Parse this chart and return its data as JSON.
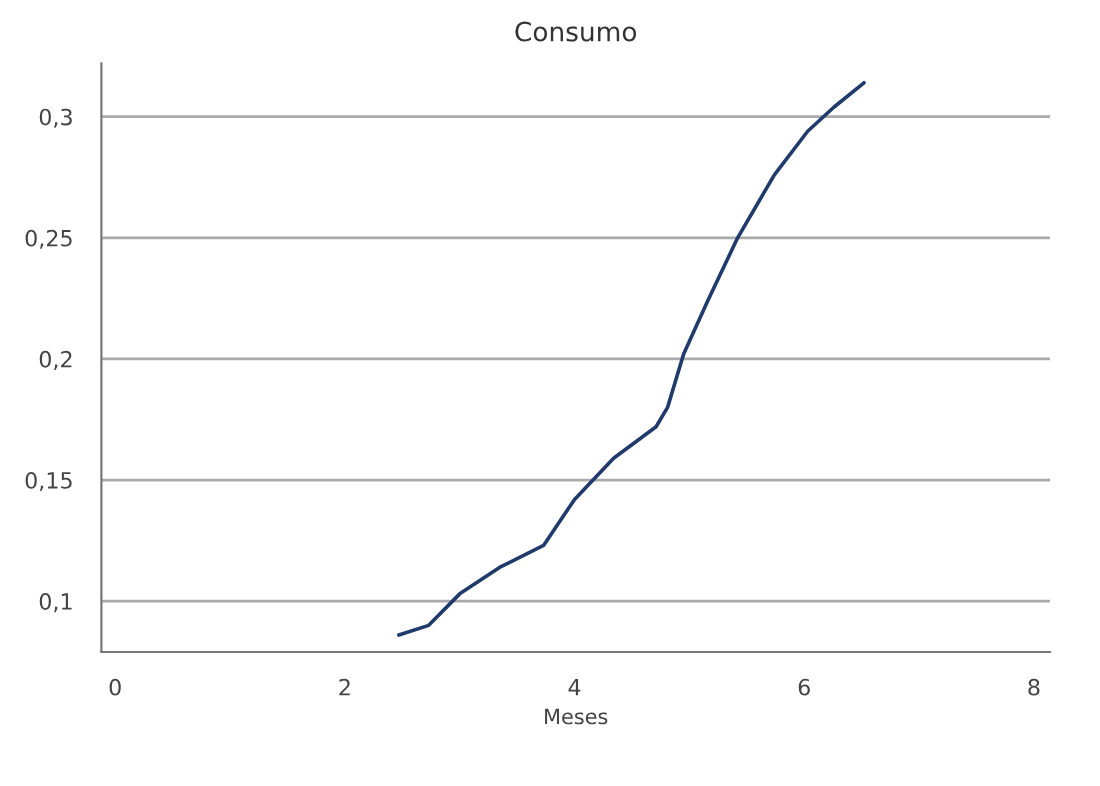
{
  "chart_data": {
    "type": "line",
    "title": "Consumo",
    "xlabel": "Meses",
    "series": [
      {
        "color": "#1f3a6b",
        "x": [
          2.47,
          2.73,
          3.0,
          3.35,
          3.73,
          4.0,
          4.34,
          4.71,
          4.81,
          4.95,
          5.16,
          5.42,
          5.74,
          6.03,
          6.26,
          6.52
        ],
        "values": [
          0.086,
          0.09,
          0.103,
          0.114,
          0.123,
          0.142,
          0.159,
          0.172,
          0.18,
          0.202,
          0.224,
          0.25,
          0.276,
          0.294,
          0.304,
          0.314
        ]
      }
    ],
    "xlim": [
      -0.12,
      8.14
    ],
    "ylim": [
      0.079,
      0.322
    ],
    "xticks": [
      0,
      2,
      4,
      6,
      8
    ],
    "yticks": [
      {
        "value": 0.1,
        "label": "0,1"
      },
      {
        "value": 0.15,
        "label": "0,15"
      },
      {
        "value": 0.2,
        "label": "0,2"
      },
      {
        "value": 0.25,
        "label": "0,25"
      },
      {
        "value": 0.3,
        "label": "0,3"
      }
    ],
    "grid": "y",
    "marker": "none",
    "line_style": "solid"
  }
}
